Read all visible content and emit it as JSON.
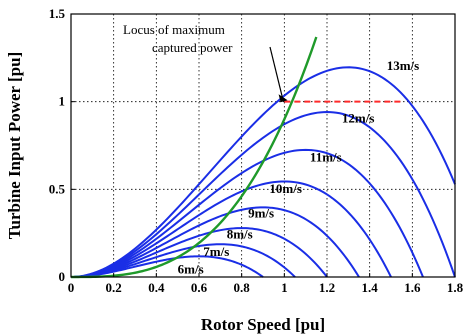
{
  "chart_data": {
    "type": "line",
    "title": "",
    "xlabel": "Rotor Speed [pu]",
    "ylabel": "Turbine Input Power [pu]",
    "xlim": [
      0,
      1.8
    ],
    "ylim": [
      0,
      1.5
    ],
    "xticks": [
      "0",
      "0.2",
      "0.4",
      "0.6",
      "0.8",
      "1",
      "1.2",
      "1.4",
      "1.6",
      "1.8"
    ],
    "yticks": [
      "0",
      "0.5",
      "1",
      "1.5"
    ],
    "grid": true,
    "series_color": "#1a2ee6",
    "locus_color": "#1f9a2a",
    "limit_color": "#ff2a2a",
    "series": [
      {
        "label": "6m/s",
        "v": 6,
        "peak_x": 0.504,
        "peak_y": 0.118,
        "zero_x": 0.9
      },
      {
        "label": "7m/s",
        "v": 7,
        "peak_x": 0.588,
        "peak_y": 0.187,
        "zero_x": 1.05
      },
      {
        "label": "8m/s",
        "v": 8,
        "peak_x": 0.672,
        "peak_y": 0.279,
        "zero_x": 1.2
      },
      {
        "label": "9m/s",
        "v": 9,
        "peak_x": 0.756,
        "peak_y": 0.397,
        "zero_x": 1.35
      },
      {
        "label": "10m/s",
        "v": 10,
        "peak_x": 0.84,
        "peak_y": 0.545,
        "zero_x": 1.5
      },
      {
        "label": "11m/s",
        "v": 11,
        "peak_x": 0.924,
        "peak_y": 0.725,
        "zero_x": 1.65
      },
      {
        "label": "12m/s",
        "v": 12,
        "peak_x": 1.008,
        "peak_y": 0.941,
        "zero_x": 1.8
      },
      {
        "label": "13m/s",
        "v": 13,
        "peak_x": 1.092,
        "peak_y": 1.196,
        "zero_x": 1.95
      }
    ],
    "locus": {
      "name": "Locus of maximum captured power",
      "relation": "P = 0.9 * omega^3"
    },
    "power_limit": {
      "y": 1.0,
      "x_start": 1.0,
      "x_end": 1.55
    },
    "annotation_lines": [
      "Locus of maximum",
      "captured power"
    ]
  }
}
